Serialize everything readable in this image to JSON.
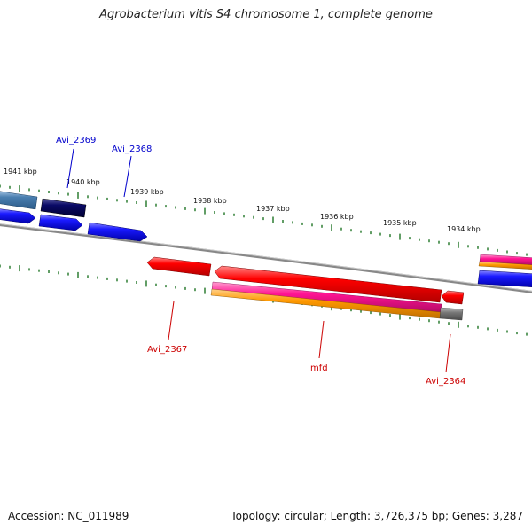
{
  "title": "Agrobacterium vitis S4 chromosome 1, complete genome",
  "footer": {
    "accession": "Accession: NC_011989",
    "topology": "Topology: circular; Length: 3,726,375 bp; Genes: 3,287"
  },
  "scale_labels": [
    "1941 kbp",
    "1940 kbp",
    "1939 kbp",
    "1938 kbp",
    "1937 kbp",
    "1936 kbp",
    "1935 kbp",
    "1934 kbp"
  ],
  "gene_labels": {
    "forward": [
      "Avi_2369",
      "Avi_2368"
    ],
    "reverse": [
      "Avi_2367",
      "mfd",
      "Avi_2364"
    ]
  },
  "colors": {
    "forward_label": "#0000cc",
    "reverse_label": "#cc0000",
    "tick": "#2e7d32",
    "backbone": "#888888",
    "blue": "#1a1aff",
    "navy": "#0a0a66",
    "steel": "#4a7fb0",
    "red": "#ff0000",
    "magenta": "#ff1493",
    "orange": "#ff9900",
    "gray": "#777777"
  }
}
